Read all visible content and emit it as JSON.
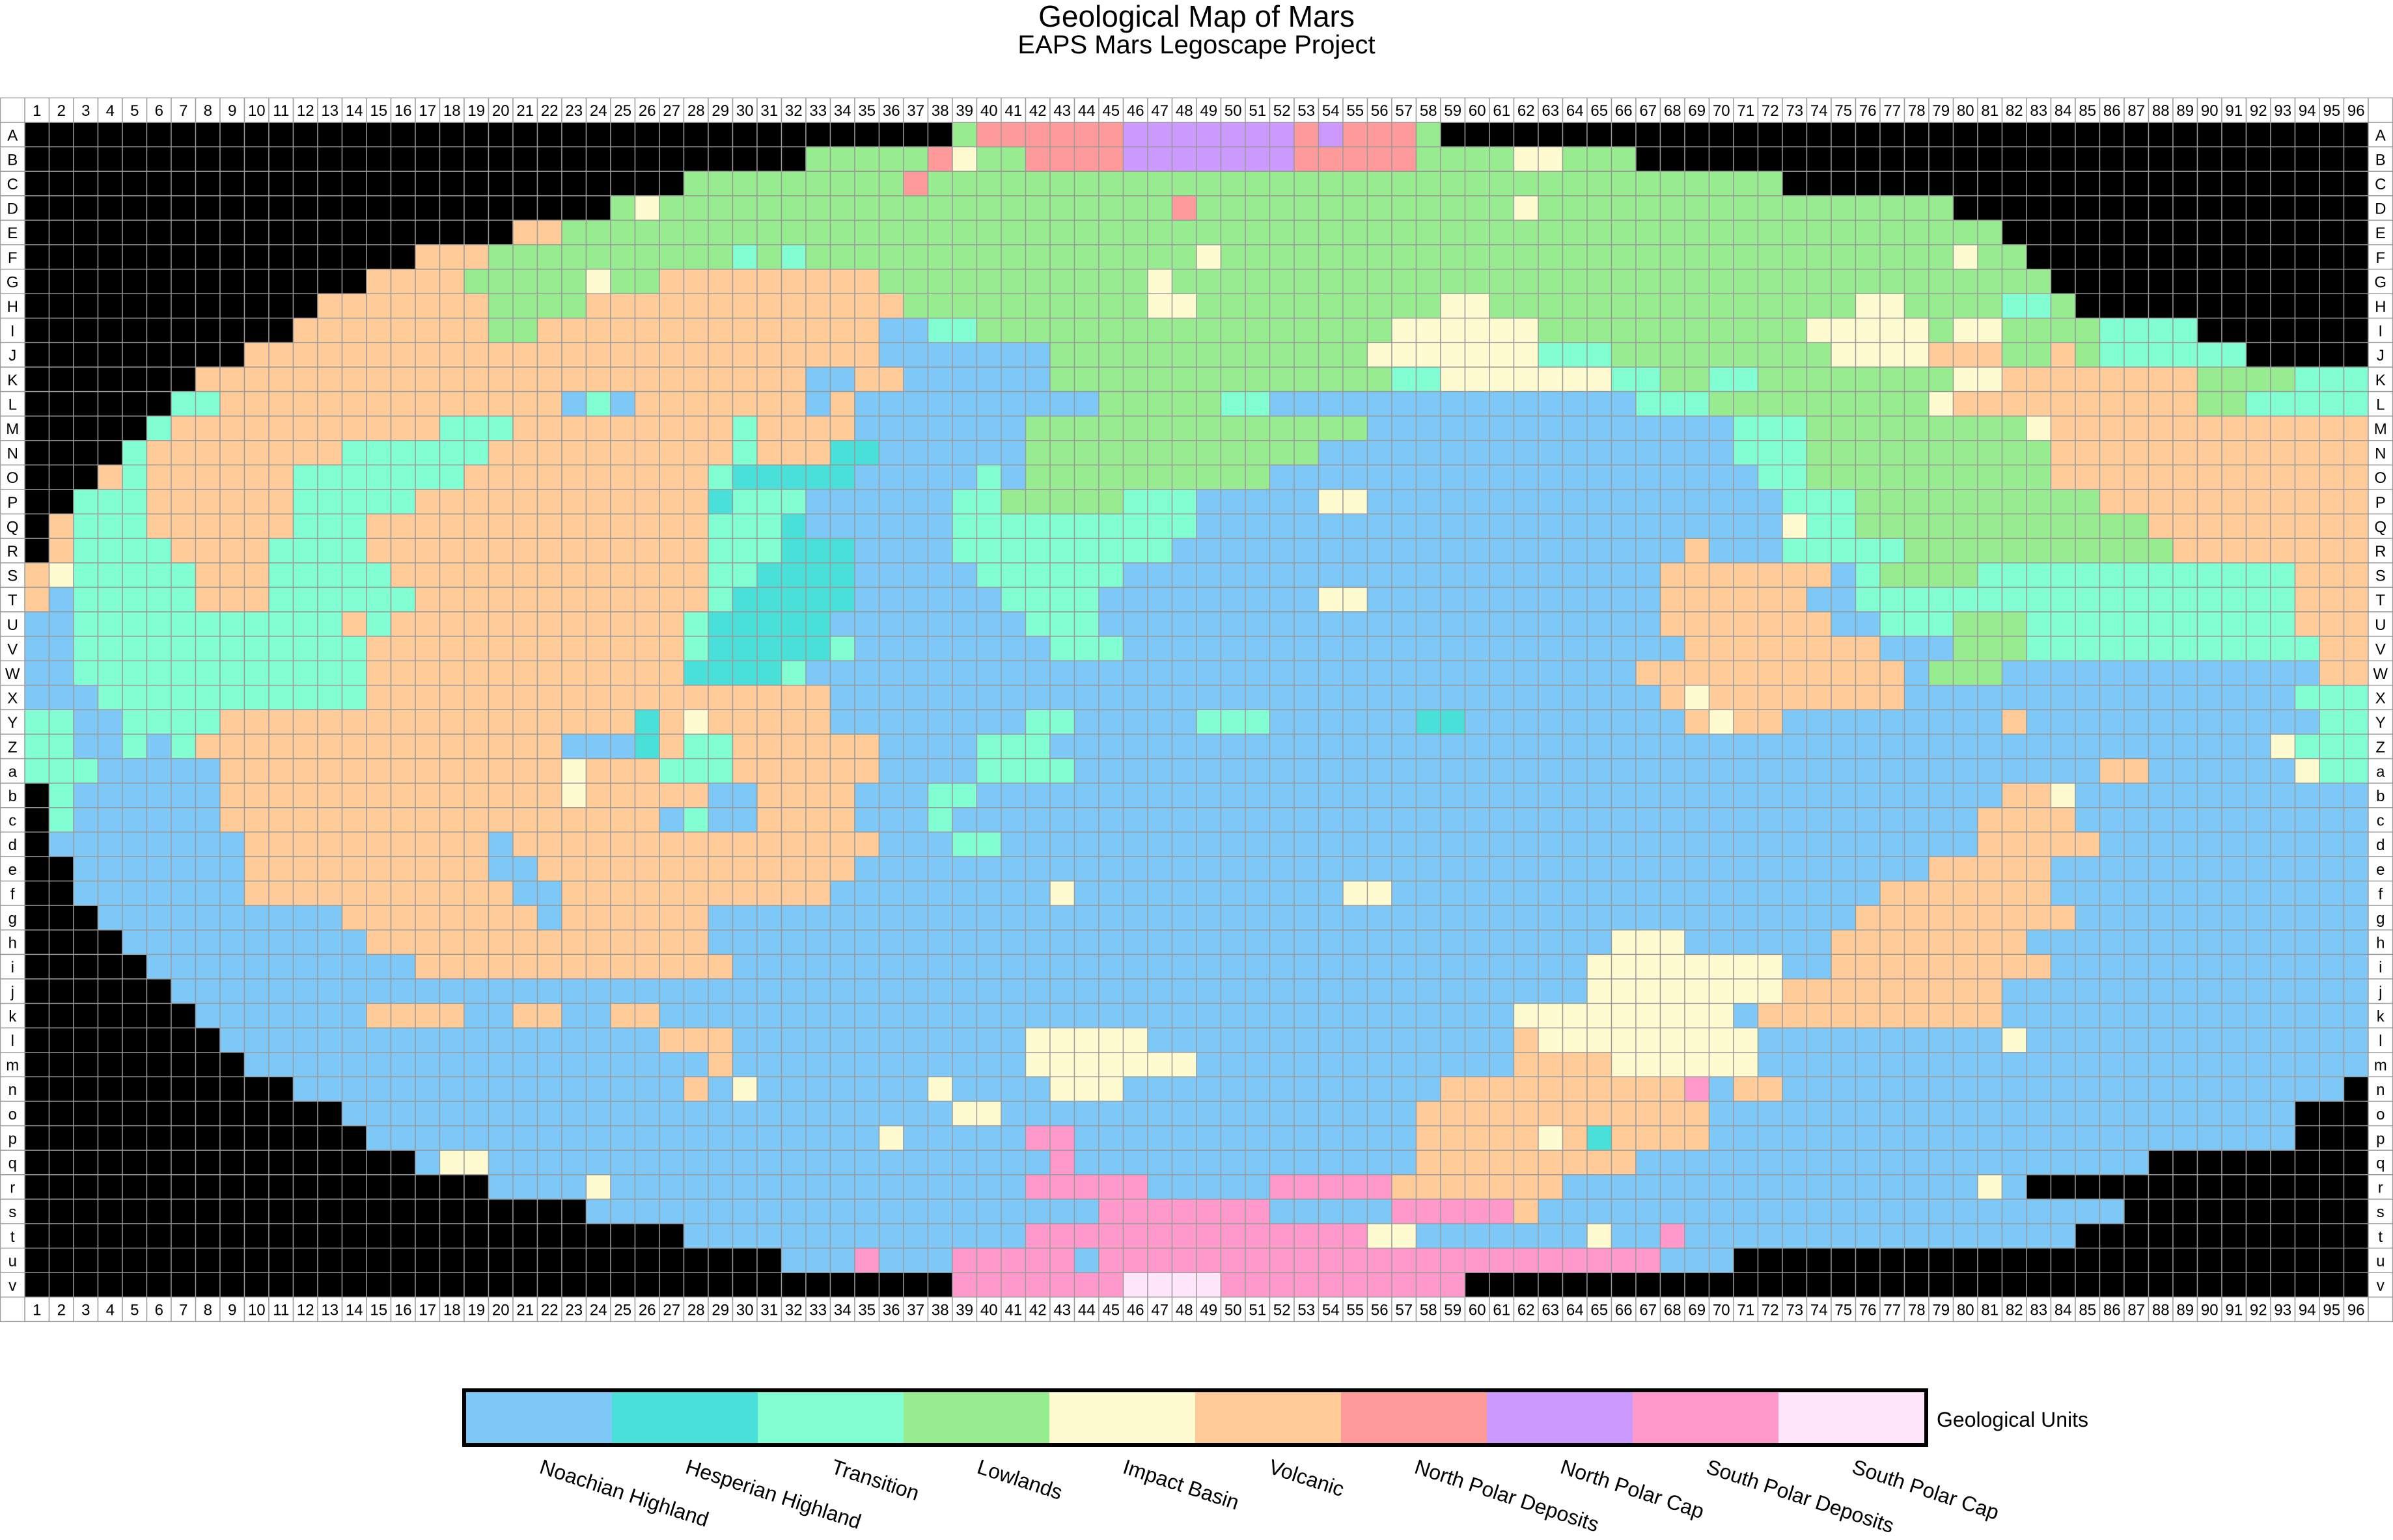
{
  "title": "Geological Map of Mars",
  "subtitle": "EAPS Mars Legoscape Project",
  "columns": [
    "1",
    "2",
    "3",
    "4",
    "5",
    "6",
    "7",
    "8",
    "9",
    "10",
    "11",
    "12",
    "13",
    "14",
    "15",
    "16",
    "17",
    "18",
    "19",
    "20",
    "21",
    "22",
    "23",
    "24",
    "25",
    "26",
    "27",
    "28",
    "29",
    "30",
    "31",
    "32",
    "33",
    "34",
    "35",
    "36",
    "37",
    "38",
    "39",
    "40",
    "41",
    "42",
    "43",
    "44",
    "45",
    "46",
    "47",
    "48",
    "49",
    "50",
    "51",
    "52",
    "53",
    "54",
    "55",
    "56",
    "57",
    "58",
    "59",
    "60",
    "61",
    "62",
    "63",
    "64",
    "65",
    "66",
    "67",
    "68",
    "69",
    "70",
    "71",
    "72",
    "73",
    "74",
    "75",
    "76",
    "77",
    "78",
    "79",
    "80",
    "81",
    "82",
    "83",
    "84",
    "85",
    "86",
    "87",
    "88",
    "89",
    "90",
    "91",
    "92",
    "93",
    "94",
    "95",
    "96"
  ],
  "rows": [
    "A",
    "B",
    "C",
    "D",
    "E",
    "F",
    "G",
    "H",
    "I",
    "J",
    "K",
    "L",
    "M",
    "N",
    "O",
    "P",
    "Q",
    "R",
    "S",
    "T",
    "U",
    "V",
    "W",
    "X",
    "Y",
    "Z",
    "a",
    "b",
    "c",
    "d",
    "e",
    "f",
    "g",
    "h",
    "i",
    "j",
    "k",
    "l",
    "m",
    "n",
    "o",
    "p",
    "q",
    "r",
    "s",
    "t",
    "u",
    "v"
  ],
  "legend": {
    "title": "Geological Units",
    "units": [
      {
        "code": "N",
        "label": "Noachian Highland",
        "color": "#7ec8f8"
      },
      {
        "code": "H",
        "label": "Hesperian Highland",
        "color": "#48e0d8"
      },
      {
        "code": "T",
        "label": "Transition",
        "color": "#82ffd2"
      },
      {
        "code": "L",
        "label": "Lowlands",
        "color": "#96ec8e"
      },
      {
        "code": "I",
        "label": "Impact Basin",
        "color": "#fffbd0"
      },
      {
        "code": "V",
        "label": "Volcanic",
        "color": "#ffcc99"
      },
      {
        "code": "D",
        "label": "North Polar Deposits",
        "color": "#ff9a9a"
      },
      {
        "code": "C",
        "label": "North Polar Cap",
        "color": "#cc99ff"
      },
      {
        "code": "S",
        "label": "South Polar Deposits",
        "color": "#ff99cc"
      },
      {
        "code": "W",
        "label": "South Polar Cap",
        "color": "#ffe6fb"
      }
    ]
  },
  "colors": {
    "off_map": "#000000",
    "grid_line": "#9a9a9a",
    "header_bg": "#ffffff"
  },
  "grid": [
    "00000000000000000000000000000000000000LDDDDDDCCCCCCCDCDDDL00000000000000000000000000000000000000",
    "00000000000000000000000000000000LLLLLDILLDDDDCCCCCCCDDDDDLLLLIILLL000000000000000000000000000000",
    "000000000000000000000000000LLLLLLLLLDLLLLLLLLLLLLLLLLLLLLLLLLLLLLLLLLLLL000000000000000000000000",
    "000000000000000000000000LILLLLLLLLLLLLLLLLLLLLLDLLLLLLLLLLLLLILLLLLLLLLLLLLLLLL000000000000000000",
    "00000000000000000000VVLLLLLLLLLLLLLLLLLLLLLLLLLLLLLLLLLLLLLLLLLLLLLLLLLLLLLLLLLLL00000000000000",
    "0000000000000000VVVLLLLLLLLLLTLTLLLLLLLLLLLLLLLLILLLLLLLLLLLLLLLLLLLLLLLLLLLLLLILL00000000000000",
    "00000000000000VVVVLLLLLILLVVVVVVVVVLLLLLLLLLLLILLLLLLLLLLLLLLLLLLLLLLLLLLLLLLLLLLLL0000000000000",
    "000000000000VVVVVVVLLLLVVVVVVVVVVVVVLLLLLLLLLLIILLLLLLLLLLIILLLLLLLLLLLLLLLIILLLLTTL000000000000",
    "00000000000VVVVVVVVLLVVVVVVVVVVVVVVNNTTLLLLLLLLLLLLLLLLLIIIIIILLLLLLLLLLLIIIIILIILLLLTTTT000000000",
    "000000000VVVVVVVVVVVVVVVVVVVVVVVVVVNNNNNNNLLLLLLLLLLLLLIIIIIIITTTLLLLLLLLLIIIIVVVLLVLTTTTTT0000000",
    "0000000VVVVVVVVVVVVVVVVVVVVVVVVVNNVVNNNNNNLLLLLLLLLLLLLLTTIIIIIIITTLLTTLLLLLLLLIIVVVVVVVVLLLLTTT000000",
    "000000TTVVVVVVVVVVVVVVNTNVVVVVVVNVNNNNNNNNNNLLLLLTTNNNNNNNNNNNNNNNTTTLLLLLLLLLIVVVVVVVVVVLLTTTTTTT0000",
    "00000TVVVVVVVVVVVTTTVVVVVVVVVTVVVVNNNNNNNLLLLLLLLLLLLLLNNNNNNNNNNNNNNNTTTLLLLLLLLLIVVVVVVVVVVVVVTVVV000",
    "0000TVVVVVVVVTTTTTTVVVVVVVVVVTVVVHHNNNNNNLLLLLLLLLLLLNNNNNNNNNNNNNNNNNTTTLLLLLLLLLLVVVVVVVVVVVVVVVVVT00",
    "000VTVVVVVVTTTTTTTVVVVVVVVVVTHHHHHNNNNNTNLLLLLLLLLLNNNNNNNNNNNNNNNNNNNNTTLLLLLLLLLLVVVVVVVVVVVVVVVVVVT0",
    "00TTTVVVVVVTTTTTVVVVVVVVVVVVHTTTNNNNNNTTLLLLLTTTNNNNNIINNNNNNNNNNNNNNNNNTTTLLLLLLLLLLVVVVVVVVVVVVVVVVTT0",
    "0VTTTVVVVVVTTTVVVVVVVVVVVVVVTTTHNNNNNNTTTTTTTTTTNNNNNNNNNNNNNNNNNNNNNNNNITTLLLLLLLLLLLLVVVVVVVVVVVVVVNT",
    "0VTTTTVVVVTTTTVVVVVVVVVVVVVVTTTHHHNNNNTTTTTTTTTNNNNNNNNNNNNNNNNNNNNNVNNNTTTTTLLLLLLLLLLLVVVVVVVVVVVVVVNT",
    "VITTTTTVVVTTTTTVVVVVVVVVVVVVTTHHHHNNNNNTTTTTTNNNNNNNNNNNNNNNNNNNNNNVVVVVVVNTLLLLTTTTTTTTTTTTTVVVVVVVVVNN",
    "VNTTTTTVVVTTTTTTVVVVVVVVVVVVTHHHHHNNNNNNTTTTNNNNNNNNNIINNNNNNNNNNNNVVVVVVNNTTTTTTTTTTTTTTTTTTVVVVVVVVVNN",
    "NNTTTTTTTTTTTVTVVVVVVVVVVVVTHHHHHNNNNNNNNTTTNNNNNNNNNNNNNNNNNNNNNNNVVVVVVVNNTTTLLLTTTTTTTTTTTVVVVVVVNVV0",
    "NNTTTTTTTTTTTTVVVVVVVVVVVVVTHHHHHTNNNNNNNNTTTNNNNNNNNNNNNNNNNNNNNNNNVVVVVVVVNNNLLLTTTTTTTTTTTTVVVVVVVVVVV",
    "NNTTTTTTTTTTTTVVVVVVVVVVVVVHHHHTNNNNNNNNNNNNNNNNNNNNNNNNNNNNNNNNNNVVVVVVVVVVVNLLLNNNNNNNNNNNNNVVVVVVVVVVV",
    "NNNTTTTTTTTTTTVVVVVVVVVVVVVVVVVVVNNNNNNNNNNNNNNNNNNNNNNNNNNNNNNNNNNVIVVVVVVVVNNNNNNNNNNNNNNNNTTTVVVVVVVV",
    "TTNNTTTTVVVVVVVVVVVVVVVVVHVIVVVVVNNNNNNNNTTNNNNNTTTNNNNNNHHNNNNNNNNNVIVVNNNNNNNNNVNNNNNNNNNNNNTTTTTVVVTTT",
    "TTNNTNTVVVVVVVVVVVVVVVNNNHVTTVVVVVVNNNNTTTNNNNNNNNNNNNNNNNNNNNNNNNNNNNNNNNNNNNNNNNNNNNNNNNNNITTTTTTTTNTT",
    "TTTNNNNNVVVVVVVVVVVVVVIVVVTTTVVVVVVNNNNTTTTNNNNNNNNNNNNNNNNNNNNNNNNNNNNNNNNNNNNNNNNNNVVNNNNNNITTTTTTTTTT",
    "0TNNNNNNVVVVVVVVVVVVVVIVVVVVNNVVVVNNNTTNNNNNNNNNNNNNNNNNNNNNNNNNNNNNNNNNNNNNNNNNNVVINNNNNNNNNNNNNNINVVNN",
    "0TNNNNNNVVVVVVVVVVVVVVVVVVNTNNVVVVNNNTNNNNNNNNNNNNNNNNNNNNNNNNNNNNNNNNNNNNNNNNNNVVVVNNNNNNNNNNNNNNNNNNNT",
    "0NNNNNNNNVVVVVVVVVVNVVVVVVVVVVVVVVVNNNTTNNNNNNNNNNNNNNNNNNNNNNNNNNNNNNNNNNNNNNNNVVVVVNNNNNNNNNNNNNNNNNNNN",
    "00NNNNNNNVVVVVVVVVVNNVVVVVVVVVVVVVNNNNNNNNNNNNNNNNNNNNNNNNNNNNNNNNNNNNNNNNNNNNVVVVVNNNNNNNNNNNNNNNNNNNNN0",
    "00NNNNNNNVVVVVVVVVVVNNVVVVVVVVVVVNNNNNNNNNINNNNNNNNNNNIINNNNNNNNNNNNNNNNNNNNVVVVVVVNNNNNNNNNNNNNNNNNNNN00",
    "000NNNNNNNNNNVVVVVVVVNVVVVVVNNNNNNNNNNNNNNNNNNNNNNNNNNNNNNNNNNNNNNNNNNNNNNNVVVVVVVVVNNNNNNNNNNNNNNNNNNN000",
    "0000NNNNNNNNNNVVVVVVVVVVVVVVNNNNNNNNNNNNNNNNNNNNNNNNNNNNNNNNNNNNNIIINNNNNNVVVVVVVVNNNNNNNNNNNNNNNNINNN0000",
    "00000NNNNNNNNNNNVVVVVVVVVVVVVNNNNNNNNNNNNNNNNNNNNNNNNNNNNNNNNNNNIIIIIIIINNVVVVVVVVVNNNNNNNNNNNNNNNNNN00000",
    "000000NNNNNNNNNNNNNNNNNNNNNNNNNNNNNNNNNNNNNNNNNNNNNNNNNNNNNNNNNNIIIIIIIIVVVVVVVVVNNNNNNNNNNNNNNNNNN000000",
    "0000000NNNNNNNVVVVNNVVNNVVNNNNNNNNNNNNNNNNNNNNNNNNNNNNNNNNNNNIIIIIIIIINVVVVVVVVVVNNNNNNNNNNNNNNNN0000000",
    "00000000NNNNNNNNNNNNNNNNNNVVVNNNNNNNNNNNNIIIIINNNNNNNNNNNNNNNVIIIIIIIIINNNNNNNNNNINNNNNNNNNNNNNNN00000000",
    "000000000NNNNNNNNNNNNNNNNNNNVNNNNNNNNNNNNIIIIIIINNNNNNNNNNNNNVVVVIIIIIINNNNNNNNNNNNNNNNNNNNNNNNN000000000",
    "00000000000NNNNNNNNNNNNNNNNVNINNNNNNNINNNNIIINNNNNNNNNNNNNVVVVVVVVVVSNVVNNNNNNNNNNNNNNNNNNNNNNN00000000000",
    "0000000000000NNNNNNNNNNNNNNNNNNNNNNNNNIINNNNNNNNNNNNNNNNNVVVVVVVVVVVVNNNNNNNNNNNNNNNNNNNNNNNN0000000000000",
    "00000000000000NNNNNNNNNNNNNNNNNNNNNINNNNNSSNNNNNNNNNNNNNNVVVVVIVHVVVVNNNNNNNNNNNNNNNNNNNNNNNN000000000000000",
    "0000000000000000NIINNNNNNNNNNNNNNNNNNNNNNNSNNNNNNNNNNNNNNVVVVVVVVVNNNNNNNNNNNNNNNNNNNNN0000000000000000",
    "0000000000000000000NNNNINNNNNNNNNNNNNNNNNSSSSSNNNNNSSSSSVVVVVVVNNNNNNNNNNNNNNNNNIN000000000000000000",
    "00000000000000000000000NNNNNNNNNNNNNNNNNNNNNSSSSSSSNNNNNSSSSSVNNNNNNNNNNNNNNNNNNNNNNNN000000000000000000000",
    "000000000000000000000000000NNNNNNNNNNNNNNSSSSSSSSSSSSSSIINNNNNNNINNSNNNNNNNNNNNNNNNN00000000000000000000000",
    "0000000000000000000000000000000NNNSNNNSSSSSNSSSSSSSSSSSSSSSSSSSSSSSNNN0000000000000000000000000000000",
    "00000000000000000000000000000000000000SSSSSSSWWWWSSSSSSSSSS000000000000000000000000000000000000000"
  ]
}
